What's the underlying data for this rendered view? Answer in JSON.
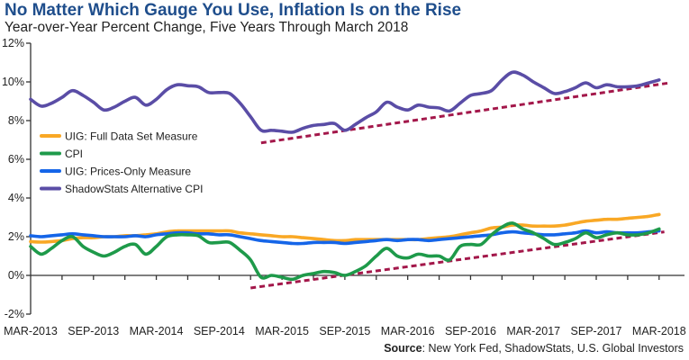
{
  "header": {
    "title": "No Matter Which Gauge You Use, Inflation Is on the Rise",
    "subtitle": "Year-over-Year Percent Change, Five Years Through March 2018"
  },
  "footer": {
    "source_label": "Source",
    "source_text": ": New York Fed, ShadowStats, U.S. Global Investors"
  },
  "chart_data": {
    "type": "line",
    "title": "No Matter Which Gauge You Use, Inflation Is on the Rise",
    "subtitle": "Year-over-Year Percent Change, Five Years Through March 2018",
    "xlabel": "",
    "ylabel": "",
    "x_start": "MAR-2013",
    "x_end": "MAR-2018",
    "x_frequency": "monthly",
    "x_tick_labels": [
      "MAR-2013",
      "SEP-2013",
      "MAR-2014",
      "SEP-2014",
      "MAR-2015",
      "SEP-2015",
      "MAR-2016",
      "SEP-2016",
      "MAR-2017",
      "SEP-2017",
      "MAR-2018"
    ],
    "x_tick_label_month_index": [
      0,
      6,
      12,
      18,
      24,
      30,
      36,
      42,
      48,
      54,
      60
    ],
    "x_minor_ticks_every_months": 3,
    "y_ticks": [
      -2,
      0,
      2,
      4,
      6,
      8,
      10,
      12
    ],
    "y_tick_suffix": "%",
    "ylim": [
      -2,
      12
    ],
    "grid": false,
    "legend_position": "left-middle",
    "series": [
      {
        "name": "UIG: Full Data Set Measure",
        "color": "#f9a825",
        "values": [
          1.75,
          1.72,
          1.75,
          1.8,
          1.9,
          1.95,
          1.95,
          2.0,
          2.0,
          2.05,
          2.05,
          2.1,
          2.15,
          2.25,
          2.3,
          2.3,
          2.3,
          2.3,
          2.3,
          2.3,
          2.2,
          2.15,
          2.1,
          2.05,
          2.0,
          2.0,
          1.95,
          1.9,
          1.85,
          1.8,
          1.8,
          1.85,
          1.85,
          1.85,
          1.85,
          1.85,
          1.85,
          1.85,
          1.9,
          1.95,
          2.0,
          2.1,
          2.2,
          2.3,
          2.45,
          2.5,
          2.6,
          2.6,
          2.55,
          2.55,
          2.55,
          2.6,
          2.7,
          2.8,
          2.85,
          2.9,
          2.9,
          2.95,
          3.0,
          3.05,
          3.15
        ]
      },
      {
        "name": "CPI",
        "color": "#1e9a4a",
        "values": [
          1.5,
          1.1,
          1.4,
          1.8,
          2.0,
          1.5,
          1.2,
          1.0,
          1.2,
          1.5,
          1.6,
          1.1,
          1.5,
          2.0,
          2.1,
          2.1,
          2.05,
          1.7,
          1.7,
          1.7,
          1.3,
          0.8,
          -0.1,
          0.0,
          -0.1,
          -0.2,
          0.0,
          0.1,
          0.2,
          0.15,
          0.0,
          0.2,
          0.5,
          1.0,
          1.4,
          1.0,
          0.9,
          1.1,
          1.0,
          1.0,
          0.8,
          1.5,
          1.6,
          1.6,
          2.1,
          2.5,
          2.7,
          2.4,
          2.2,
          1.9,
          1.6,
          1.7,
          1.9,
          2.2,
          1.95,
          2.1,
          2.2,
          2.1,
          2.1,
          2.2,
          2.4
        ]
      },
      {
        "name": "UIG: Prices-Only Measure",
        "color": "#1565e8",
        "values": [
          2.05,
          2.0,
          2.05,
          2.1,
          2.15,
          2.1,
          2.05,
          2.0,
          2.0,
          2.0,
          2.05,
          2.0,
          2.1,
          2.15,
          2.2,
          2.2,
          2.15,
          2.15,
          2.1,
          2.1,
          2.0,
          1.9,
          1.8,
          1.75,
          1.7,
          1.65,
          1.65,
          1.7,
          1.7,
          1.7,
          1.65,
          1.7,
          1.75,
          1.8,
          1.85,
          1.8,
          1.85,
          1.85,
          1.8,
          1.85,
          1.9,
          1.95,
          2.0,
          2.05,
          2.1,
          2.2,
          2.25,
          2.2,
          2.15,
          2.1,
          2.1,
          2.15,
          2.2,
          2.3,
          2.2,
          2.25,
          2.2,
          2.2,
          2.2,
          2.25,
          2.3
        ]
      },
      {
        "name": "ShadowStats Alternative CPI",
        "color": "#5a4da6",
        "values": [
          9.1,
          8.75,
          8.9,
          9.2,
          9.55,
          9.3,
          8.95,
          8.55,
          8.7,
          9.0,
          9.2,
          8.8,
          9.1,
          9.6,
          9.85,
          9.8,
          9.75,
          9.45,
          9.45,
          9.4,
          8.9,
          8.2,
          7.5,
          7.5,
          7.45,
          7.4,
          7.6,
          7.75,
          7.8,
          7.85,
          7.5,
          7.8,
          8.15,
          8.45,
          8.95,
          8.7,
          8.55,
          8.8,
          8.7,
          8.65,
          8.5,
          8.9,
          9.3,
          9.4,
          9.55,
          10.1,
          10.5,
          10.35,
          10.0,
          9.7,
          9.4,
          9.5,
          9.7,
          9.95,
          9.7,
          9.85,
          9.75,
          9.75,
          9.8,
          9.95,
          10.1
        ]
      }
    ],
    "trend_lines": [
      {
        "name": "ShadowStats trend",
        "color": "#a3174a",
        "style": "dashed",
        "from": {
          "month_index": 22,
          "value": 6.85
        },
        "to": {
          "month_index": 61,
          "value": 9.95
        }
      },
      {
        "name": "CPI trend",
        "color": "#a3174a",
        "style": "dashed",
        "from": {
          "month_index": 21,
          "value": -0.65
        },
        "to": {
          "month_index": 60.5,
          "value": 2.25
        }
      }
    ]
  }
}
